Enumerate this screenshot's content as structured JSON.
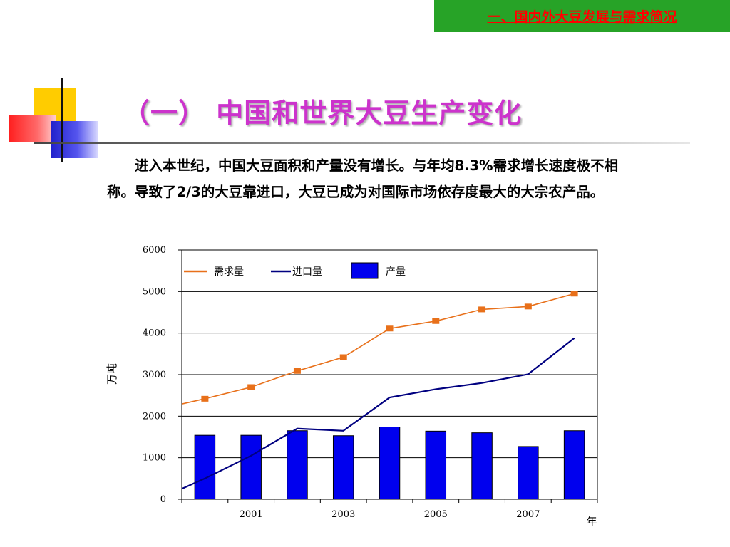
{
  "header": {
    "section_label": "一、国内外大豆发展与需求简况"
  },
  "title": "（一）  中国和世界大豆生产变化",
  "paragraph": "进入本世纪，中国大豆面积和产量没有增长。与年均8.3%需求增长速度极不相称。导致了2/3的大豆靠进口，大豆已成为对国际市场依存度最大的大宗农产品。",
  "colors": {
    "banner": "#27a327",
    "banner_text": "#ff0000",
    "title": "#cc33cc",
    "demand": "#e8701a",
    "import": "#000080",
    "production": "#0000ee"
  },
  "chart_data": {
    "type": "bar",
    "x": [
      2000,
      2001,
      2002,
      2003,
      2004,
      2005,
      2006,
      2007,
      2008
    ],
    "x_tick_labels": [
      "2001",
      "2003",
      "2005",
      "2007"
    ],
    "y_ticks": [
      "0",
      "1000",
      "2000",
      "3000",
      "4000",
      "5000",
      "6000"
    ],
    "ylim": [
      0,
      6000
    ],
    "ylabel": "万吨",
    "xlabel": "年",
    "legend_position": "top-left",
    "series": [
      {
        "name": "需求量",
        "type": "line",
        "marker": "square",
        "values": [
          2420,
          2700,
          3090,
          3420,
          4110,
          4290,
          4570,
          4640,
          4950
        ]
      },
      {
        "name": "进口量",
        "type": "line",
        "values": [
          500,
          1050,
          1700,
          1650,
          2450,
          2650,
          2800,
          3010,
          3880
        ]
      },
      {
        "name": "产量",
        "type": "bar",
        "values": [
          1540,
          1540,
          1650,
          1530,
          1740,
          1640,
          1600,
          1270,
          1650
        ]
      }
    ]
  }
}
